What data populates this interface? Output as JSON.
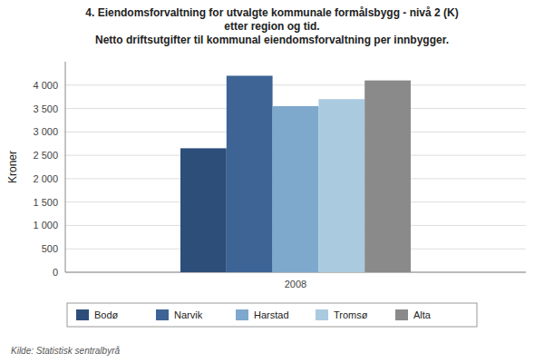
{
  "chart_data": {
    "type": "bar",
    "title": "4. Eiendomsforvaltning for utvalgte kommunale formålsbygg - nivå 2 (K)\netter region og tid.\nNetto driftsutgifter til kommunal eiendomsforvaltning per innbygger.",
    "ylabel": "Kroner",
    "annotations": [
      "Kilde: Statistisk sentralbyrå"
    ],
    "categories": [
      "2008"
    ],
    "series": [
      {
        "name": "Bodø",
        "color": "#2E4E7A",
        "values": [
          2650
        ]
      },
      {
        "name": "Narvik",
        "color": "#3D6494",
        "values": [
          4200
        ]
      },
      {
        "name": "Harstad",
        "color": "#7EA8CC",
        "values": [
          3550
        ]
      },
      {
        "name": "Tromsø",
        "color": "#AACAE0",
        "values": [
          3700
        ]
      },
      {
        "name": "Alta",
        "color": "#8A8A8A",
        "values": [
          4100
        ]
      }
    ],
    "ylim": [
      0,
      4500
    ],
    "yticks": [
      0,
      500,
      {
        "value": 1000,
        "label": "1 000"
      },
      {
        "value": 1500,
        "label": "1 500"
      },
      {
        "value": 2000,
        "label": "2 000"
      },
      {
        "value": 2500,
        "label": "2 500"
      },
      {
        "value": 3000,
        "label": "3 000"
      },
      {
        "value": 3500,
        "label": "3 500"
      },
      {
        "value": 4000,
        "label": "4 000"
      }
    ],
    "grid": true,
    "legend": "bottom"
  }
}
